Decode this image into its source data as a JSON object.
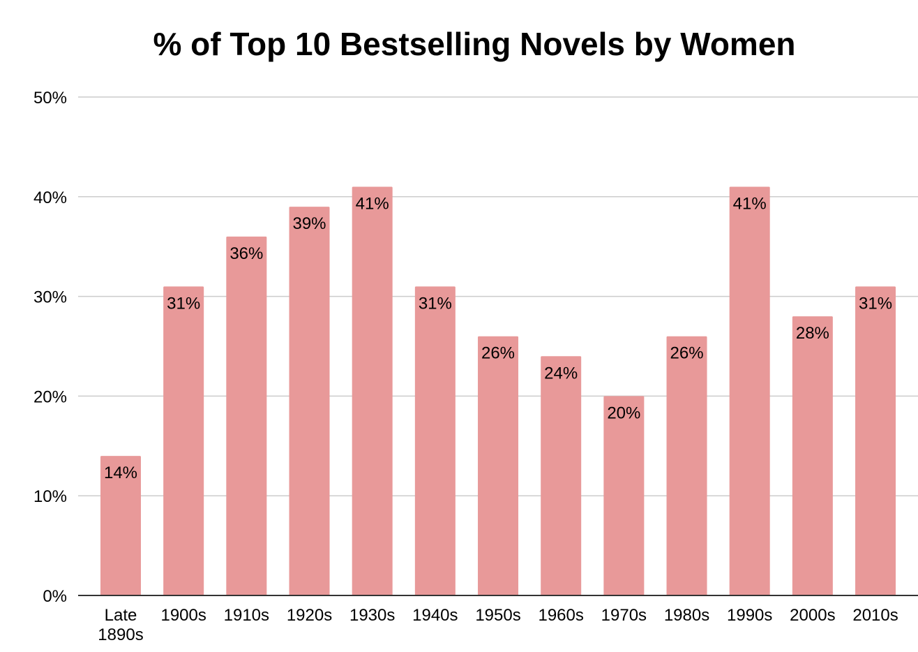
{
  "chart_data": {
    "type": "bar",
    "title": "% of Top 10 Bestselling Novels by Women",
    "xlabel": "",
    "ylabel": "",
    "categories": [
      "Late 1890s",
      "1900s",
      "1910s",
      "1920s",
      "1930s",
      "1940s",
      "1950s",
      "1960s",
      "1970s",
      "1980s",
      "1990s",
      "2000s",
      "2010s"
    ],
    "category_label_lines": [
      [
        "Late",
        "1890s"
      ],
      [
        "1900s"
      ],
      [
        "1910s"
      ],
      [
        "1920s"
      ],
      [
        "1930s"
      ],
      [
        "1940s"
      ],
      [
        "1950s"
      ],
      [
        "1960s"
      ],
      [
        "1970s"
      ],
      [
        "1980s"
      ],
      [
        "1990s"
      ],
      [
        "2000s"
      ],
      [
        "2010s"
      ]
    ],
    "values": [
      14,
      31,
      36,
      39,
      41,
      31,
      26,
      24,
      20,
      26,
      41,
      28,
      31
    ],
    "data_labels": [
      "14%",
      "31%",
      "36%",
      "39%",
      "41%",
      "31%",
      "26%",
      "24%",
      "20%",
      "26%",
      "41%",
      "28%",
      "31%"
    ],
    "ylim": [
      0,
      50
    ],
    "yticks": [
      0,
      10,
      20,
      30,
      40,
      50
    ],
    "ytick_labels": [
      "0%",
      "10%",
      "20%",
      "30%",
      "40%",
      "50%"
    ],
    "grid": true,
    "legend": "none",
    "colors": {
      "bar": "#e89999",
      "grid": "#cccccc",
      "axis": "#333333",
      "text": "#000000"
    }
  }
}
